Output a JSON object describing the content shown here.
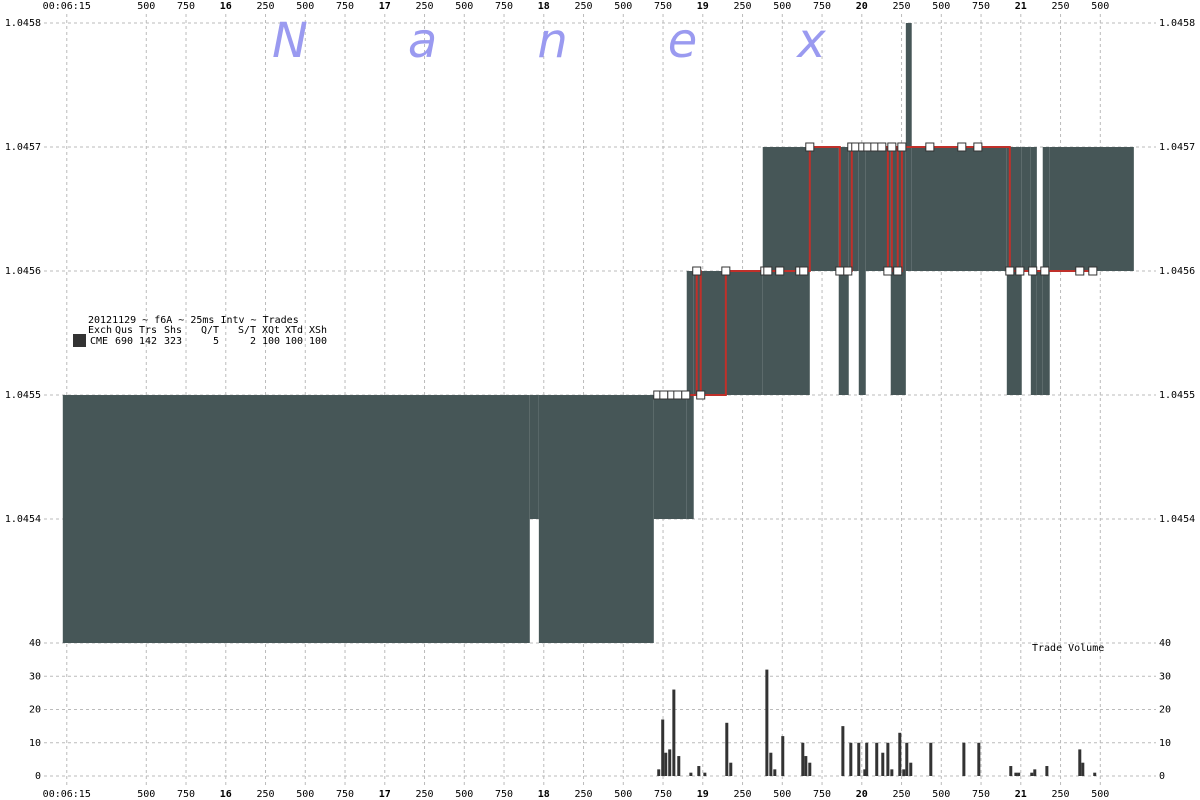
{
  "chart_data": [
    {
      "type": "range",
      "watermark": "Nanex",
      "legend": {
        "title": "20121129 ~ f6A ~ 25ms Intv ~ Trades",
        "color": "#333333",
        "header": [
          "Exch",
          "Qus",
          "Trs",
          "Shs",
          "Q/T",
          "S/T",
          "XQt",
          "XTd",
          "XSh"
        ],
        "rows": [
          [
            "CME",
            690,
            142,
            323,
            5,
            2,
            100,
            100,
            100
          ]
        ]
      },
      "xlim": [
        14.97,
        21.8
      ],
      "xticks": [
        {
          "value": 15,
          "label": "00:06:15"
        },
        {
          "value": 15.5,
          "label": "500"
        },
        {
          "value": 15.75,
          "label": "750"
        },
        16,
        {
          "value": 16.25,
          "label": "250"
        },
        {
          "value": 16.5,
          "label": "500"
        },
        {
          "value": 16.75,
          "label": "750"
        },
        17,
        {
          "value": 17.25,
          "label": "250"
        },
        {
          "value": 17.5,
          "label": "500"
        },
        {
          "value": 17.75,
          "label": "750"
        },
        18,
        {
          "value": 18.25,
          "label": "250"
        },
        {
          "value": 18.5,
          "label": "500"
        },
        {
          "value": 18.75,
          "label": "750"
        },
        19,
        {
          "value": 19.25,
          "label": "250"
        },
        {
          "value": 19.5,
          "label": "500"
        },
        {
          "value": 19.75,
          "label": "750"
        },
        20,
        {
          "value": 20.25,
          "label": "250"
        },
        {
          "value": 20.5,
          "label": "500"
        },
        {
          "value": 20.75,
          "label": "750"
        },
        21,
        {
          "value": 21.25,
          "label": "250"
        },
        {
          "value": 21.5,
          "label": "500"
        }
      ],
      "ylim": [
        1.0453,
        1.0458
      ],
      "yticks": [
        1.0454,
        1.0455,
        1.0456,
        1.0457,
        1.0458
      ],
      "grid": true,
      "quotes": {
        "color": "#465657",
        "start": [
          14.975,
          17.912,
          17.969,
          18.692,
          18.899,
          18.943,
          19.377,
          19.673,
          19.855,
          19.918,
          19.981,
          20.025,
          20.182,
          20.277,
          20.314,
          20.912,
          21.006,
          21.063,
          21.101,
          21.138,
          21.182
        ],
        "end": [
          17.912,
          17.969,
          18.692,
          18.899,
          18.943,
          19.377,
          19.673,
          19.855,
          19.918,
          19.981,
          20.025,
          20.182,
          20.277,
          20.314,
          20.912,
          21.006,
          21.063,
          21.101,
          21.138,
          21.182,
          21.711
        ],
        "bid": [
          1.0453,
          1.0454,
          1.0453,
          1.0454,
          1.0454,
          1.0455,
          1.0455,
          1.0456,
          1.0455,
          1.0456,
          1.0455,
          1.0456,
          1.0455,
          1.0456,
          1.0456,
          1.0455,
          1.0456,
          1.0455,
          1.0455,
          1.0455,
          1.0456
        ],
        "ask": [
          1.0455,
          1.0455,
          1.0455,
          1.0455,
          1.0456,
          1.0456,
          1.0457,
          1.0457,
          1.0457,
          1.0457,
          1.0457,
          1.0457,
          1.0457,
          1.0458,
          1.0457,
          1.0457,
          1.0457,
          1.0457,
          1.0456,
          1.0457,
          1.0457
        ]
      },
      "trades": {
        "color": "#c0302a",
        "time": [
          18.717,
          18.755,
          18.805,
          18.843,
          18.893,
          18.962,
          18.987,
          19.145,
          19.39,
          19.409,
          19.484,
          19.61,
          19.635,
          19.673,
          19.862,
          19.912,
          19.937,
          19.962,
          20.006,
          20.038,
          20.082,
          20.126,
          20.164,
          20.189,
          20.226,
          20.252,
          20.428,
          20.629,
          20.73,
          20.931,
          20.994,
          21.075,
          21.151,
          21.371,
          21.453
        ],
        "price": [
          1.0455,
          1.0455,
          1.0455,
          1.0455,
          1.0455,
          1.0456,
          1.0455,
          1.0456,
          1.0456,
          1.0456,
          1.0456,
          1.0456,
          1.0456,
          1.0457,
          1.0456,
          1.0456,
          1.0457,
          1.0457,
          1.0457,
          1.0457,
          1.0457,
          1.0457,
          1.0456,
          1.0457,
          1.0456,
          1.0457,
          1.0457,
          1.0457,
          1.0457,
          1.0456,
          1.0456,
          1.0456,
          1.0456,
          1.0456,
          1.0456
        ]
      }
    },
    {
      "type": "bar",
      "title": "Trade Volume",
      "color": "#333333",
      "xlim": [
        14.97,
        21.8
      ],
      "xticks": [
        {
          "value": 15,
          "label": "00:06:15"
        },
        {
          "value": 15.5,
          "label": "500"
        },
        {
          "value": 15.75,
          "label": "750"
        },
        16,
        {
          "value": 16.25,
          "label": "250"
        },
        {
          "value": 16.5,
          "label": "500"
        },
        {
          "value": 16.75,
          "label": "750"
        },
        17,
        {
          "value": 17.25,
          "label": "250"
        },
        {
          "value": 17.5,
          "label": "500"
        },
        {
          "value": 17.75,
          "label": "750"
        },
        18,
        {
          "value": 18.25,
          "label": "250"
        },
        {
          "value": 18.5,
          "label": "500"
        },
        {
          "value": 18.75,
          "label": "750"
        },
        19,
        {
          "value": 19.25,
          "label": "250"
        },
        {
          "value": 19.5,
          "label": "500"
        },
        {
          "value": 19.75,
          "label": "750"
        },
        20,
        {
          "value": 20.25,
          "label": "250"
        },
        {
          "value": 20.5,
          "label": "500"
        },
        {
          "value": 20.75,
          "label": "750"
        },
        21,
        {
          "value": 21.25,
          "label": "250"
        },
        {
          "value": 21.5,
          "label": "500"
        }
      ],
      "ylim": [
        0,
        40
      ],
      "yticks": [
        0,
        10,
        20,
        30,
        40
      ],
      "x": [
        18.723,
        18.748,
        18.767,
        18.792,
        18.818,
        18.849,
        18.925,
        18.975,
        19.013,
        19.151,
        19.176,
        19.403,
        19.428,
        19.453,
        19.503,
        19.629,
        19.648,
        19.673,
        19.881,
        19.931,
        19.981,
        20.019,
        20.031,
        20.094,
        20.132,
        20.164,
        20.189,
        20.239,
        20.264,
        20.283,
        20.308,
        20.434,
        20.642,
        20.736,
        20.937,
        20.969,
        20.987,
        21.069,
        21.088,
        21.164,
        21.371,
        21.39,
        21.465
      ],
      "values": [
        2,
        17,
        7,
        8,
        26,
        6,
        1,
        3,
        1,
        16,
        4,
        32,
        7,
        2,
        12,
        10,
        6,
        4,
        15,
        10,
        10,
        2,
        10,
        10,
        7,
        10,
        2,
        13,
        2,
        10,
        4,
        10,
        10,
        10,
        3,
        1,
        1,
        1,
        2,
        3,
        8,
        4,
        1
      ]
    }
  ]
}
